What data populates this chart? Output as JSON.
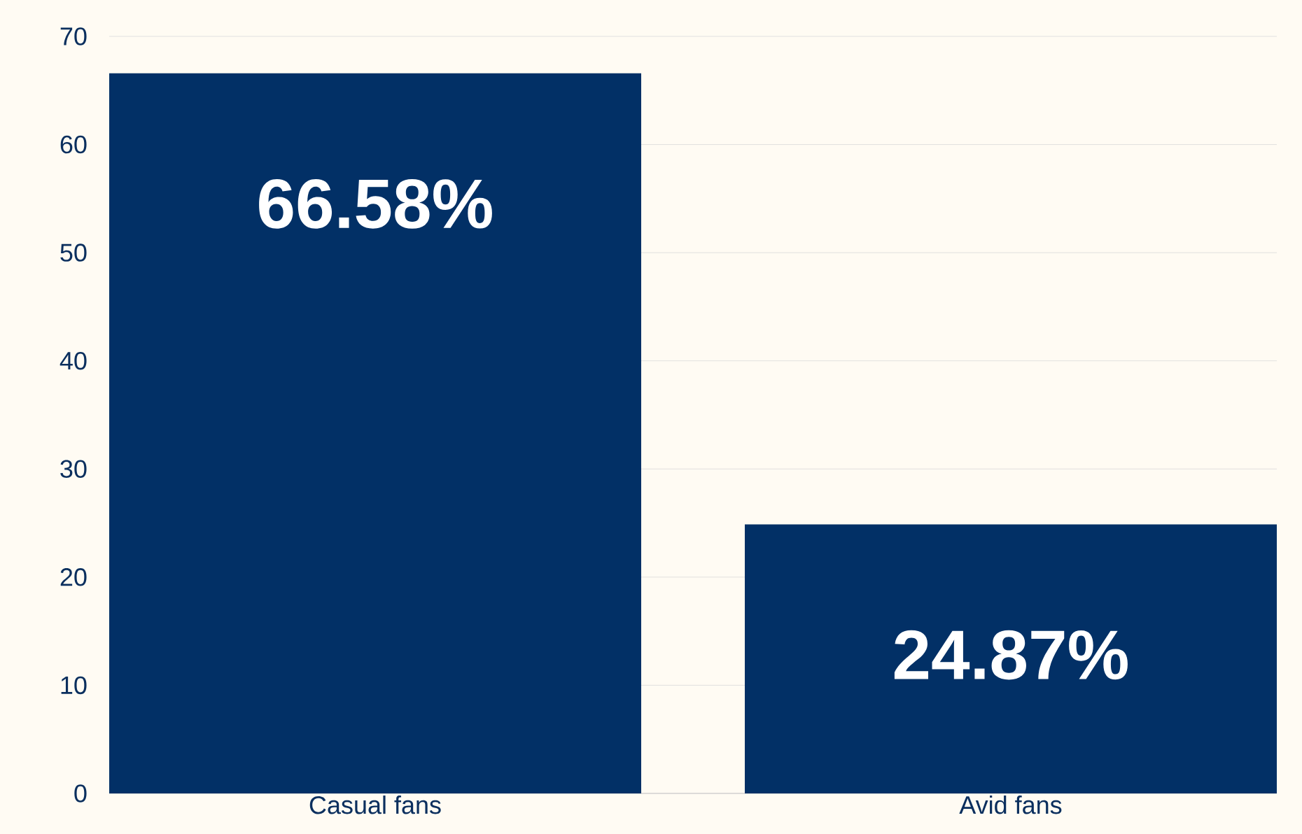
{
  "chart_data": {
    "type": "bar",
    "categories": [
      "Casual fans",
      "Avid fans"
    ],
    "values": [
      66.58,
      24.87
    ],
    "value_labels": [
      "66.58%",
      "24.87%"
    ],
    "color": "#023066",
    "ylim": [
      0,
      70
    ],
    "yticks": [
      0,
      10,
      20,
      30,
      40,
      50,
      60,
      70
    ],
    "grid": "y"
  }
}
